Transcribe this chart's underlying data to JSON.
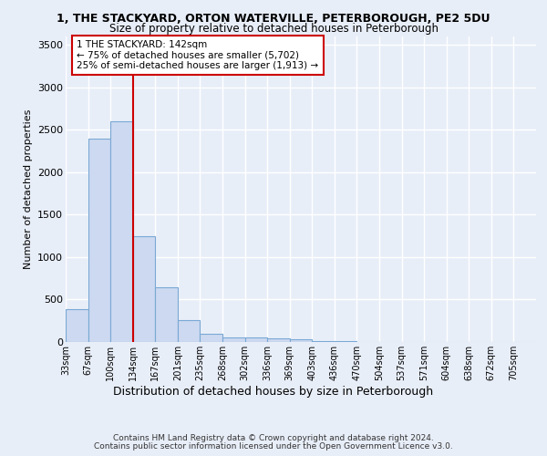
{
  "title1": "1, THE STACKYARD, ORTON WATERVILLE, PETERBOROUGH, PE2 5DU",
  "title2": "Size of property relative to detached houses in Peterborough",
  "xlabel": "Distribution of detached houses by size in Peterborough",
  "ylabel": "Number of detached properties",
  "bin_labels": [
    "33sqm",
    "67sqm",
    "100sqm",
    "134sqm",
    "167sqm",
    "201sqm",
    "235sqm",
    "268sqm",
    "302sqm",
    "336sqm",
    "369sqm",
    "403sqm",
    "436sqm",
    "470sqm",
    "504sqm",
    "537sqm",
    "571sqm",
    "604sqm",
    "638sqm",
    "672sqm",
    "705sqm"
  ],
  "bar_values": [
    390,
    2400,
    2600,
    1250,
    650,
    260,
    100,
    55,
    55,
    45,
    30,
    15,
    8,
    5,
    3,
    2,
    1,
    1,
    0,
    0,
    0
  ],
  "bar_color": "#ccd9f0",
  "bar_edge_color": "#7aa8d4",
  "vline_x": 3,
  "vline_color": "#cc0000",
  "annotation_text": "1 THE STACKYARD: 142sqm\n← 75% of detached houses are smaller (5,702)\n25% of semi-detached houses are larger (1,913) →",
  "annotation_box_color": "#cc0000",
  "ylim": [
    0,
    3600
  ],
  "yticks": [
    0,
    500,
    1000,
    1500,
    2000,
    2500,
    3000,
    3500
  ],
  "footer1": "Contains HM Land Registry data © Crown copyright and database right 2024.",
  "footer2": "Contains public sector information licensed under the Open Government Licence v3.0.",
  "bg_color": "#e8eef8",
  "plot_bg_color": "#e8eef8",
  "grid_color": "#ffffff"
}
